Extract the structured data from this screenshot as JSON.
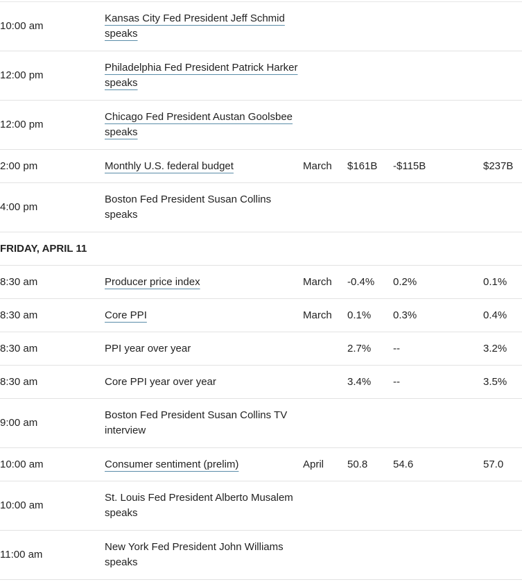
{
  "rows": [
    {
      "kind": "event",
      "tall": true,
      "time": "10:00 am",
      "event": "Kansas City Fed President Jeff Schmid speaks",
      "linked": true,
      "period": "",
      "actual": "",
      "forecast": "",
      "previous": ""
    },
    {
      "kind": "event",
      "tall": true,
      "time": "12:00 pm",
      "event": "Philadelphia Fed President Patrick Harker speaks",
      "linked": true,
      "period": "",
      "actual": "",
      "forecast": "",
      "previous": ""
    },
    {
      "kind": "event",
      "tall": true,
      "time": "12:00 pm",
      "event": "Chicago Fed President Austan Goolsbee speaks",
      "linked": true,
      "period": "",
      "actual": "",
      "forecast": "",
      "previous": ""
    },
    {
      "kind": "event",
      "tall": false,
      "time": "2:00 pm",
      "event": "Monthly U.S. federal budget",
      "linked": true,
      "period": "March",
      "actual": "$161B",
      "forecast": "-$115B",
      "previous": "$237B"
    },
    {
      "kind": "event",
      "tall": true,
      "time": "4:00 pm",
      "event": "Boston Fed President Susan Collins speaks",
      "linked": false,
      "period": "",
      "actual": "",
      "forecast": "",
      "previous": ""
    },
    {
      "kind": "day",
      "label": "FRIDAY, APRIL 11"
    },
    {
      "kind": "event",
      "tall": false,
      "time": "8:30 am",
      "event": "Producer price index",
      "linked": true,
      "period": "March",
      "actual": "-0.4%",
      "forecast": "0.2%",
      "previous": "0.1%"
    },
    {
      "kind": "event",
      "tall": false,
      "time": "8:30 am",
      "event": "Core PPI",
      "linked": true,
      "period": "March",
      "actual": "0.1%",
      "forecast": "0.3%",
      "previous": "0.4%"
    },
    {
      "kind": "event",
      "tall": false,
      "time": "8:30 am",
      "event": "PPI year over year",
      "linked": false,
      "period": "",
      "actual": "2.7%",
      "forecast": "--",
      "previous": "3.2%"
    },
    {
      "kind": "event",
      "tall": false,
      "time": "8:30 am",
      "event": "Core PPI year over year",
      "linked": false,
      "period": "",
      "actual": "3.4%",
      "forecast": "--",
      "previous": "3.5%"
    },
    {
      "kind": "event",
      "tall": true,
      "time": "9:00 am",
      "event": "Boston Fed President Susan Collins TV interview",
      "linked": false,
      "period": "",
      "actual": "",
      "forecast": "",
      "previous": ""
    },
    {
      "kind": "event",
      "tall": false,
      "time": "10:00 am",
      "event": "Consumer sentiment (prelim)",
      "linked": true,
      "period": "April",
      "actual": "50.8",
      "forecast": "54.6",
      "previous": "57.0"
    },
    {
      "kind": "event",
      "tall": true,
      "time": "10:00 am",
      "event": "St. Louis Fed President Alberto Musalem speaks",
      "linked": false,
      "period": "",
      "actual": "",
      "forecast": "",
      "previous": ""
    },
    {
      "kind": "event",
      "tall": true,
      "time": "11:00 am",
      "event": "New York Fed President John Williams speaks",
      "linked": false,
      "period": "",
      "actual": "",
      "forecast": "",
      "previous": ""
    }
  ]
}
